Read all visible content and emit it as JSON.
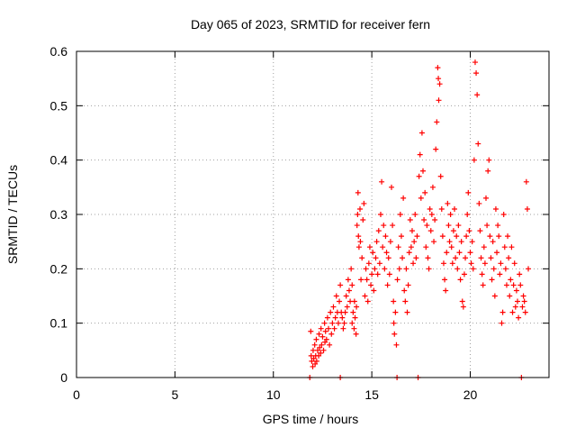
{
  "chart_data": {
    "type": "scatter",
    "title": "Day 065 of 2023, SRMTID for receiver fern",
    "xlabel": "GPS time / hours",
    "ylabel": "SRMTID / TECUs",
    "xlim": [
      0,
      24
    ],
    "ylim": [
      0,
      0.6
    ],
    "xticks": [
      0,
      5,
      10,
      15,
      20
    ],
    "yticks": [
      0,
      0.1,
      0.2,
      0.3,
      0.4,
      0.5,
      0.6
    ],
    "ytick_labels": [
      "0",
      "0.1",
      "0.2",
      "0.3",
      "0.4",
      "0.5",
      "0.6"
    ],
    "grid": true,
    "marker": "+",
    "color": "#ff0000",
    "series": [
      {
        "name": "SRMTID",
        "points": [
          [
            11.85,
            0.0
          ],
          [
            11.9,
            0.085
          ],
          [
            11.92,
            0.04
          ],
          [
            11.95,
            0.03
          ],
          [
            12.0,
            0.02
          ],
          [
            12.02,
            0.05
          ],
          [
            12.05,
            0.035
          ],
          [
            12.1,
            0.06
          ],
          [
            12.12,
            0.025
          ],
          [
            12.15,
            0.04
          ],
          [
            12.18,
            0.07
          ],
          [
            12.2,
            0.03
          ],
          [
            12.25,
            0.05
          ],
          [
            12.3,
            0.04
          ],
          [
            12.32,
            0.08
          ],
          [
            12.35,
            0.055
          ],
          [
            12.4,
            0.045
          ],
          [
            12.42,
            0.09
          ],
          [
            12.45,
            0.06
          ],
          [
            12.5,
            0.075
          ],
          [
            12.55,
            0.05
          ],
          [
            12.6,
            0.1
          ],
          [
            12.62,
            0.065
          ],
          [
            12.65,
            0.085
          ],
          [
            12.7,
            0.07
          ],
          [
            12.75,
            0.11
          ],
          [
            12.8,
            0.09
          ],
          [
            12.85,
            0.06
          ],
          [
            12.9,
            0.12
          ],
          [
            12.95,
            0.08
          ],
          [
            13.0,
            0.1
          ],
          [
            13.05,
            0.13
          ],
          [
            13.1,
            0.09
          ],
          [
            13.15,
            0.11
          ],
          [
            13.2,
            0.15
          ],
          [
            13.25,
            0.12
          ],
          [
            13.3,
            0.1
          ],
          [
            13.35,
            0.14
          ],
          [
            13.4,
            0.17
          ],
          [
            13.4,
            0.0
          ],
          [
            13.45,
            0.12
          ],
          [
            13.5,
            0.11
          ],
          [
            13.55,
            0.09
          ],
          [
            13.6,
            0.1
          ],
          [
            13.65,
            0.12
          ],
          [
            13.7,
            0.15
          ],
          [
            13.75,
            0.13
          ],
          [
            13.8,
            0.18
          ],
          [
            13.85,
            0.16
          ],
          [
            13.9,
            0.14
          ],
          [
            13.95,
            0.2
          ],
          [
            14.0,
            0.17
          ],
          [
            14.0,
            0.1
          ],
          [
            14.05,
            0.12
          ],
          [
            14.1,
            0.09
          ],
          [
            14.12,
            0.14
          ],
          [
            14.15,
            0.11
          ],
          [
            14.2,
            0.08
          ],
          [
            14.22,
            0.13
          ],
          [
            14.25,
            0.28
          ],
          [
            14.28,
            0.3
          ],
          [
            14.3,
            0.34
          ],
          [
            14.32,
            0.26
          ],
          [
            14.35,
            0.24
          ],
          [
            14.4,
            0.31
          ],
          [
            14.42,
            0.25
          ],
          [
            14.45,
            0.18
          ],
          [
            14.5,
            0.22
          ],
          [
            14.55,
            0.29
          ],
          [
            14.6,
            0.32
          ],
          [
            14.65,
            0.15
          ],
          [
            14.7,
            0.2
          ],
          [
            14.75,
            0.18
          ],
          [
            14.8,
            0.14
          ],
          [
            14.85,
            0.21
          ],
          [
            14.9,
            0.24
          ],
          [
            14.95,
            0.17
          ],
          [
            15.0,
            0.19
          ],
          [
            15.05,
            0.23
          ],
          [
            15.1,
            0.16
          ],
          [
            15.15,
            0.2
          ],
          [
            15.2,
            0.22
          ],
          [
            15.25,
            0.25
          ],
          [
            15.3,
            0.19
          ],
          [
            15.35,
            0.27
          ],
          [
            15.4,
            0.21
          ],
          [
            15.45,
            0.3
          ],
          [
            15.5,
            0.36
          ],
          [
            15.55,
            0.24
          ],
          [
            15.6,
            0.28
          ],
          [
            15.65,
            0.2
          ],
          [
            15.7,
            0.26
          ],
          [
            15.75,
            0.23
          ],
          [
            15.8,
            0.17
          ],
          [
            15.85,
            0.22
          ],
          [
            15.9,
            0.19
          ],
          [
            15.95,
            0.25
          ],
          [
            16.0,
            0.35
          ],
          [
            16.05,
            0.28
          ],
          [
            16.1,
            0.14
          ],
          [
            16.12,
            0.1
          ],
          [
            16.15,
            0.08
          ],
          [
            16.2,
            0.12
          ],
          [
            16.25,
            0.06
          ],
          [
            16.28,
            0.0
          ],
          [
            16.3,
            0.18
          ],
          [
            16.35,
            0.24
          ],
          [
            16.4,
            0.2
          ],
          [
            16.45,
            0.3
          ],
          [
            16.5,
            0.26
          ],
          [
            16.55,
            0.22
          ],
          [
            16.6,
            0.33
          ],
          [
            16.65,
            0.16
          ],
          [
            16.7,
            0.14
          ],
          [
            16.75,
            0.2
          ],
          [
            16.8,
            0.12
          ],
          [
            16.85,
            0.17
          ],
          [
            16.9,
            0.23
          ],
          [
            16.95,
            0.29
          ],
          [
            17.0,
            0.24
          ],
          [
            17.05,
            0.27
          ],
          [
            17.1,
            0.21
          ],
          [
            17.15,
            0.25
          ],
          [
            17.2,
            0.3
          ],
          [
            17.25,
            0.22
          ],
          [
            17.3,
            0.26
          ],
          [
            17.35,
            0.0
          ],
          [
            17.4,
            0.37
          ],
          [
            17.45,
            0.41
          ],
          [
            17.5,
            0.33
          ],
          [
            17.55,
            0.45
          ],
          [
            17.6,
            0.38
          ],
          [
            17.65,
            0.29
          ],
          [
            17.7,
            0.34
          ],
          [
            17.75,
            0.24
          ],
          [
            17.8,
            0.28
          ],
          [
            17.85,
            0.22
          ],
          [
            17.9,
            0.2
          ],
          [
            17.95,
            0.31
          ],
          [
            18.0,
            0.27
          ],
          [
            18.05,
            0.3
          ],
          [
            18.1,
            0.35
          ],
          [
            18.15,
            0.25
          ],
          [
            18.2,
            0.29
          ],
          [
            18.25,
            0.42
          ],
          [
            18.3,
            0.47
          ],
          [
            18.35,
            0.57
          ],
          [
            18.38,
            0.55
          ],
          [
            18.4,
            0.51
          ],
          [
            18.45,
            0.54
          ],
          [
            18.5,
            0.37
          ],
          [
            18.55,
            0.31
          ],
          [
            18.6,
            0.26
          ],
          [
            18.65,
            0.21
          ],
          [
            18.7,
            0.18
          ],
          [
            18.75,
            0.16
          ],
          [
            18.8,
            0.23
          ],
          [
            18.85,
            0.32
          ],
          [
            18.9,
            0.28
          ],
          [
            18.95,
            0.25
          ],
          [
            19.0,
            0.3
          ],
          [
            19.05,
            0.24
          ],
          [
            19.1,
            0.21
          ],
          [
            19.15,
            0.27
          ],
          [
            19.2,
            0.31
          ],
          [
            19.25,
            0.22
          ],
          [
            19.3,
            0.26
          ],
          [
            19.35,
            0.2
          ],
          [
            19.4,
            0.28
          ],
          [
            19.45,
            0.23
          ],
          [
            19.5,
            0.18
          ],
          [
            19.55,
            0.25
          ],
          [
            19.6,
            0.14
          ],
          [
            19.65,
            0.13
          ],
          [
            19.7,
            0.19
          ],
          [
            19.75,
            0.22
          ],
          [
            19.8,
            0.26
          ],
          [
            19.85,
            0.3
          ],
          [
            19.9,
            0.34
          ],
          [
            19.95,
            0.27
          ],
          [
            20.0,
            0.23
          ],
          [
            20.05,
            0.21
          ],
          [
            20.1,
            0.25
          ],
          [
            20.15,
            0.2
          ],
          [
            20.2,
            0.4
          ],
          [
            20.25,
            0.58
          ],
          [
            20.3,
            0.56
          ],
          [
            20.35,
            0.52
          ],
          [
            20.4,
            0.43
          ],
          [
            20.45,
            0.32
          ],
          [
            20.5,
            0.27
          ],
          [
            20.55,
            0.22
          ],
          [
            20.6,
            0.19
          ],
          [
            20.65,
            0.17
          ],
          [
            20.7,
            0.24
          ],
          [
            20.75,
            0.21
          ],
          [
            20.8,
            0.33
          ],
          [
            20.85,
            0.28
          ],
          [
            20.9,
            0.38
          ],
          [
            20.95,
            0.4
          ],
          [
            21.0,
            0.26
          ],
          [
            21.05,
            0.22
          ],
          [
            21.1,
            0.18
          ],
          [
            21.15,
            0.25
          ],
          [
            21.2,
            0.2
          ],
          [
            21.25,
            0.15
          ],
          [
            21.3,
            0.31
          ],
          [
            21.35,
            0.23
          ],
          [
            21.4,
            0.28
          ],
          [
            21.45,
            0.26
          ],
          [
            21.5,
            0.19
          ],
          [
            21.55,
            0.21
          ],
          [
            21.6,
            0.1
          ],
          [
            21.65,
            0.12
          ],
          [
            21.7,
            0.3
          ],
          [
            21.75,
            0.24
          ],
          [
            21.8,
            0.2
          ],
          [
            21.85,
            0.17
          ],
          [
            21.9,
            0.26
          ],
          [
            21.95,
            0.22
          ],
          [
            22.0,
            0.15
          ],
          [
            22.05,
            0.18
          ],
          [
            22.1,
            0.24
          ],
          [
            22.15,
            0.12
          ],
          [
            22.2,
            0.17
          ],
          [
            22.25,
            0.21
          ],
          [
            22.3,
            0.13
          ],
          [
            22.35,
            0.16
          ],
          [
            22.4,
            0.14
          ],
          [
            22.45,
            0.11
          ],
          [
            22.5,
            0.19
          ],
          [
            22.55,
            0.17
          ],
          [
            22.6,
            0.0
          ],
          [
            22.65,
            0.13
          ],
          [
            22.7,
            0.15
          ],
          [
            22.75,
            0.14
          ],
          [
            22.8,
            0.12
          ],
          [
            22.85,
            0.36
          ],
          [
            22.9,
            0.31
          ],
          [
            22.95,
            0.2
          ]
        ]
      }
    ]
  }
}
